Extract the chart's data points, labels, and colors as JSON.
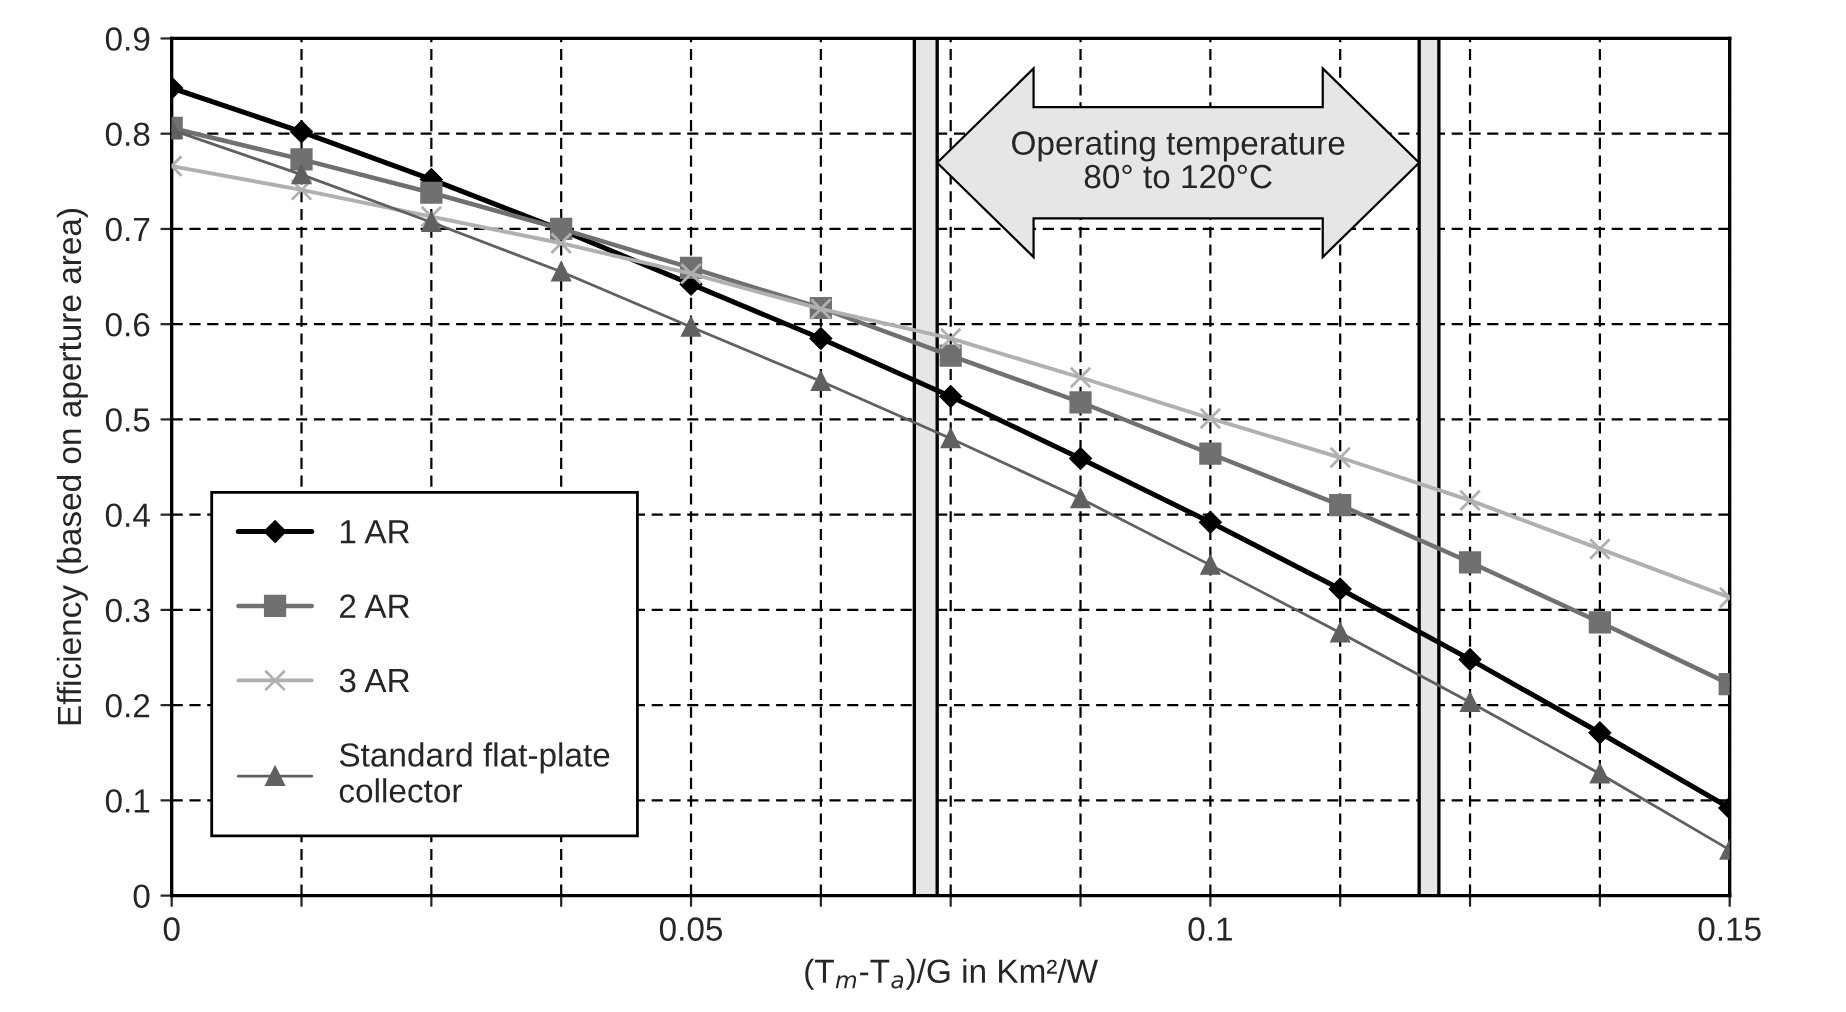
{
  "chart_data": {
    "type": "line",
    "xlabel": "(T$_{m}$-T$_{a}$)/G in Km²/W",
    "ylabel": "Efficiency (based on aperture area)",
    "x": [
      0,
      0.0125,
      0.025,
      0.0375,
      0.05,
      0.0625,
      0.075,
      0.0875,
      0.1,
      0.1125,
      0.125,
      0.1375,
      0.15
    ],
    "series": [
      {
        "name": "1 AR",
        "color": "#000000",
        "marker": "diamond",
        "values": [
          0.848,
          0.802,
          0.752,
          0.699,
          0.642,
          0.585,
          0.524,
          0.459,
          0.392,
          0.322,
          0.248,
          0.171,
          0.092
        ]
      },
      {
        "name": "2 AR",
        "color": "#707070",
        "marker": "square",
        "values": [
          0.806,
          0.773,
          0.738,
          0.7,
          0.659,
          0.617,
          0.567,
          0.518,
          0.464,
          0.41,
          0.35,
          0.287,
          0.222
        ]
      },
      {
        "name": "3 AR",
        "color": "#b0b0b0",
        "marker": "cross",
        "values": [
          0.766,
          0.741,
          0.713,
          0.685,
          0.653,
          0.616,
          0.585,
          0.544,
          0.501,
          0.46,
          0.415,
          0.364,
          0.313
        ]
      },
      {
        "name": "Standard flat-plate\ncollector",
        "color": "#606060",
        "marker": "triangle",
        "values": [
          0.804,
          0.757,
          0.707,
          0.655,
          0.597,
          0.54,
          0.48,
          0.417,
          0.347,
          0.276,
          0.203,
          0.128,
          0.048
        ]
      }
    ],
    "xlim": [
      0,
      0.15
    ],
    "xticks": [
      0,
      {
        "value": 0.0125,
        "label": null
      },
      {
        "value": 0.025,
        "label": null
      },
      {
        "value": 0.0375,
        "label": null
      },
      0.05,
      {
        "value": 0.0625,
        "label": null
      },
      {
        "value": 0.075,
        "label": null
      },
      {
        "value": 0.0875,
        "label": null
      },
      0.1,
      {
        "value": 0.1125,
        "label": null
      },
      {
        "value": 0.125,
        "label": null
      },
      {
        "value": 0.1375,
        "label": null
      },
      0.15
    ],
    "ylim": [
      0,
      0.9
    ],
    "yticks": [
      0,
      0.1,
      0.2,
      0.3,
      0.4,
      0.5,
      0.6,
      0.7,
      0.8,
      0.9
    ],
    "bands": [
      {
        "axis": "x",
        "from": 0.0715,
        "to": 0.0737,
        "color": "#e6e6e6"
      },
      {
        "axis": "x",
        "from": 0.1201,
        "to": 0.122,
        "color": "#e6e6e6"
      }
    ],
    "annotations": [
      "Operating temperature\n80° to 120°C"
    ],
    "grid": true,
    "legend": "left",
    "line_style": "solid"
  }
}
